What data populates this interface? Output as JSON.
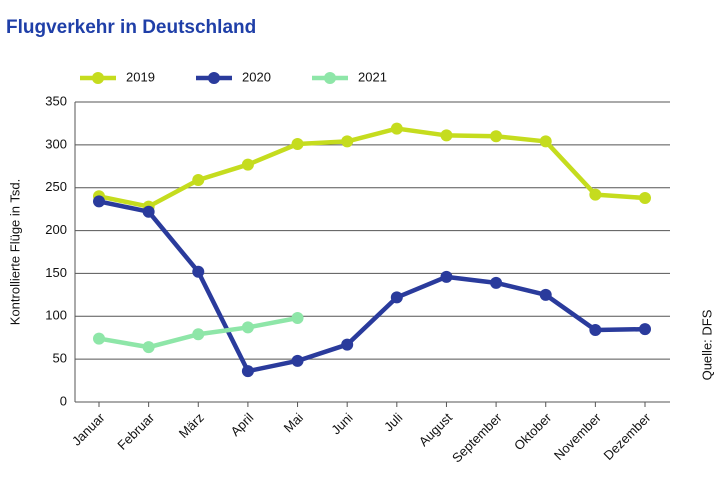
{
  "chart_data": {
    "type": "line",
    "title": "Flugverkehr in Deutschland",
    "y_label": "Kontrollierte Flüge in Tsd.",
    "source": "Quelle: DFS",
    "categories": [
      "Januar",
      "Februar",
      "März",
      "April",
      "Mai",
      "Juni",
      "Juli",
      "August",
      "September",
      "Oktober",
      "November",
      "Dezember"
    ],
    "series": [
      {
        "name": "2019",
        "color": "#c5dc1e",
        "values": [
          240,
          228,
          259,
          277,
          301,
          304,
          319,
          311,
          310,
          304,
          242,
          238
        ]
      },
      {
        "name": "2020",
        "color": "#2a3b9c",
        "values": [
          234,
          222,
          152,
          36,
          48,
          67,
          122,
          146,
          139,
          125,
          84,
          85
        ]
      },
      {
        "name": "2021",
        "color": "#8ee6a8",
        "values": [
          74,
          64,
          79,
          87,
          98,
          null,
          null,
          null,
          null,
          null,
          null,
          null
        ]
      }
    ],
    "ylim": [
      0,
      350
    ],
    "yticks": [
      0,
      50,
      100,
      150,
      200,
      250,
      300,
      350
    ],
    "grid": true,
    "legend": "top"
  }
}
